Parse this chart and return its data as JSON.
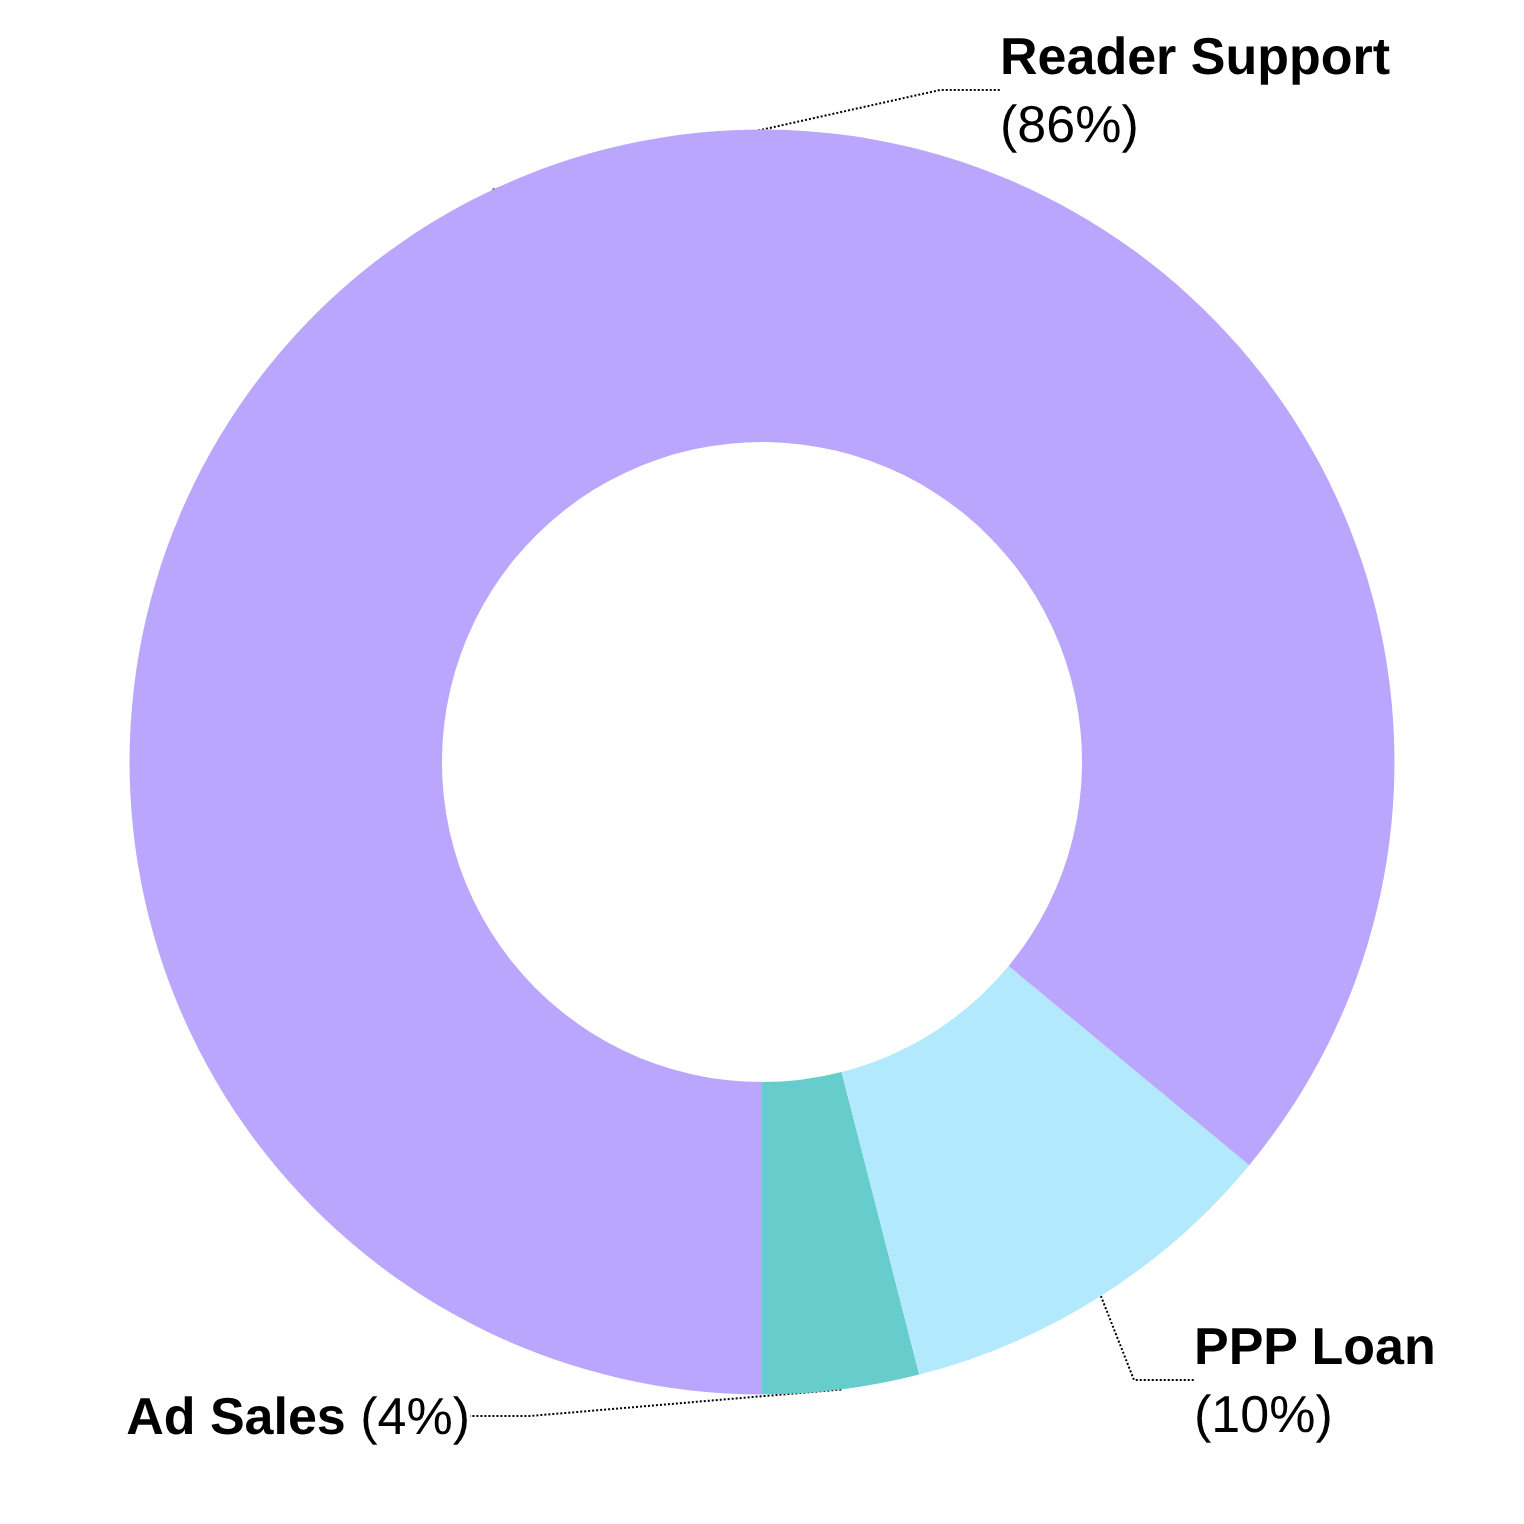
{
  "chart_data": {
    "type": "donut",
    "categories": [
      "Ad Sales",
      "PPP Loan",
      "Reader Support"
    ],
    "values": [
      4,
      10,
      86
    ],
    "colors": [
      "#66cdcc",
      "#b3e9fc",
      "#bba6fe"
    ],
    "value_labels": [
      "(4%)",
      "(10%)",
      "(86%)"
    ]
  }
}
